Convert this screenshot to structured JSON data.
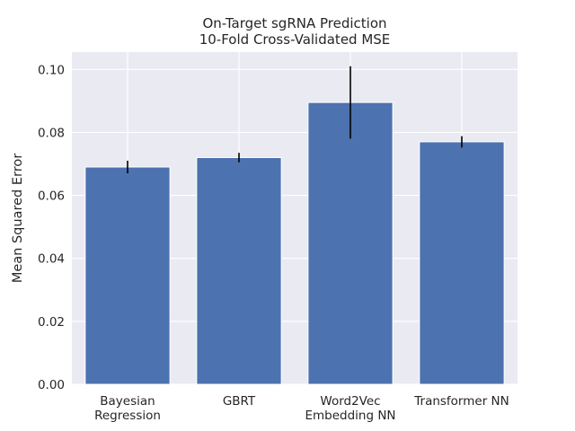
{
  "chart_data": {
    "type": "bar",
    "title": [
      "On-Target sgRNA Prediction",
      "10-Fold Cross-Validated MSE"
    ],
    "xlabel": "",
    "ylabel": "Mean Squared Error",
    "categories": [
      [
        "Bayesian",
        "Regression"
      ],
      [
        "GBRT"
      ],
      [
        "Word2Vec",
        "Embedding NN"
      ],
      [
        "Transformer NN"
      ]
    ],
    "values": [
      0.069,
      0.072,
      0.0895,
      0.077
    ],
    "errors": [
      0.002,
      0.0015,
      0.0115,
      0.0018
    ],
    "ylim": [
      0,
      0.1055
    ],
    "yticks": [
      0.0,
      0.02,
      0.04,
      0.06,
      0.08,
      0.1
    ],
    "ytick_labels": [
      "0.00",
      "0.02",
      "0.04",
      "0.06",
      "0.08",
      "0.10"
    ],
    "grid": true,
    "bar_color": "#4c72b0",
    "error_color": "#000000",
    "background_color": "#eaeaf2"
  }
}
